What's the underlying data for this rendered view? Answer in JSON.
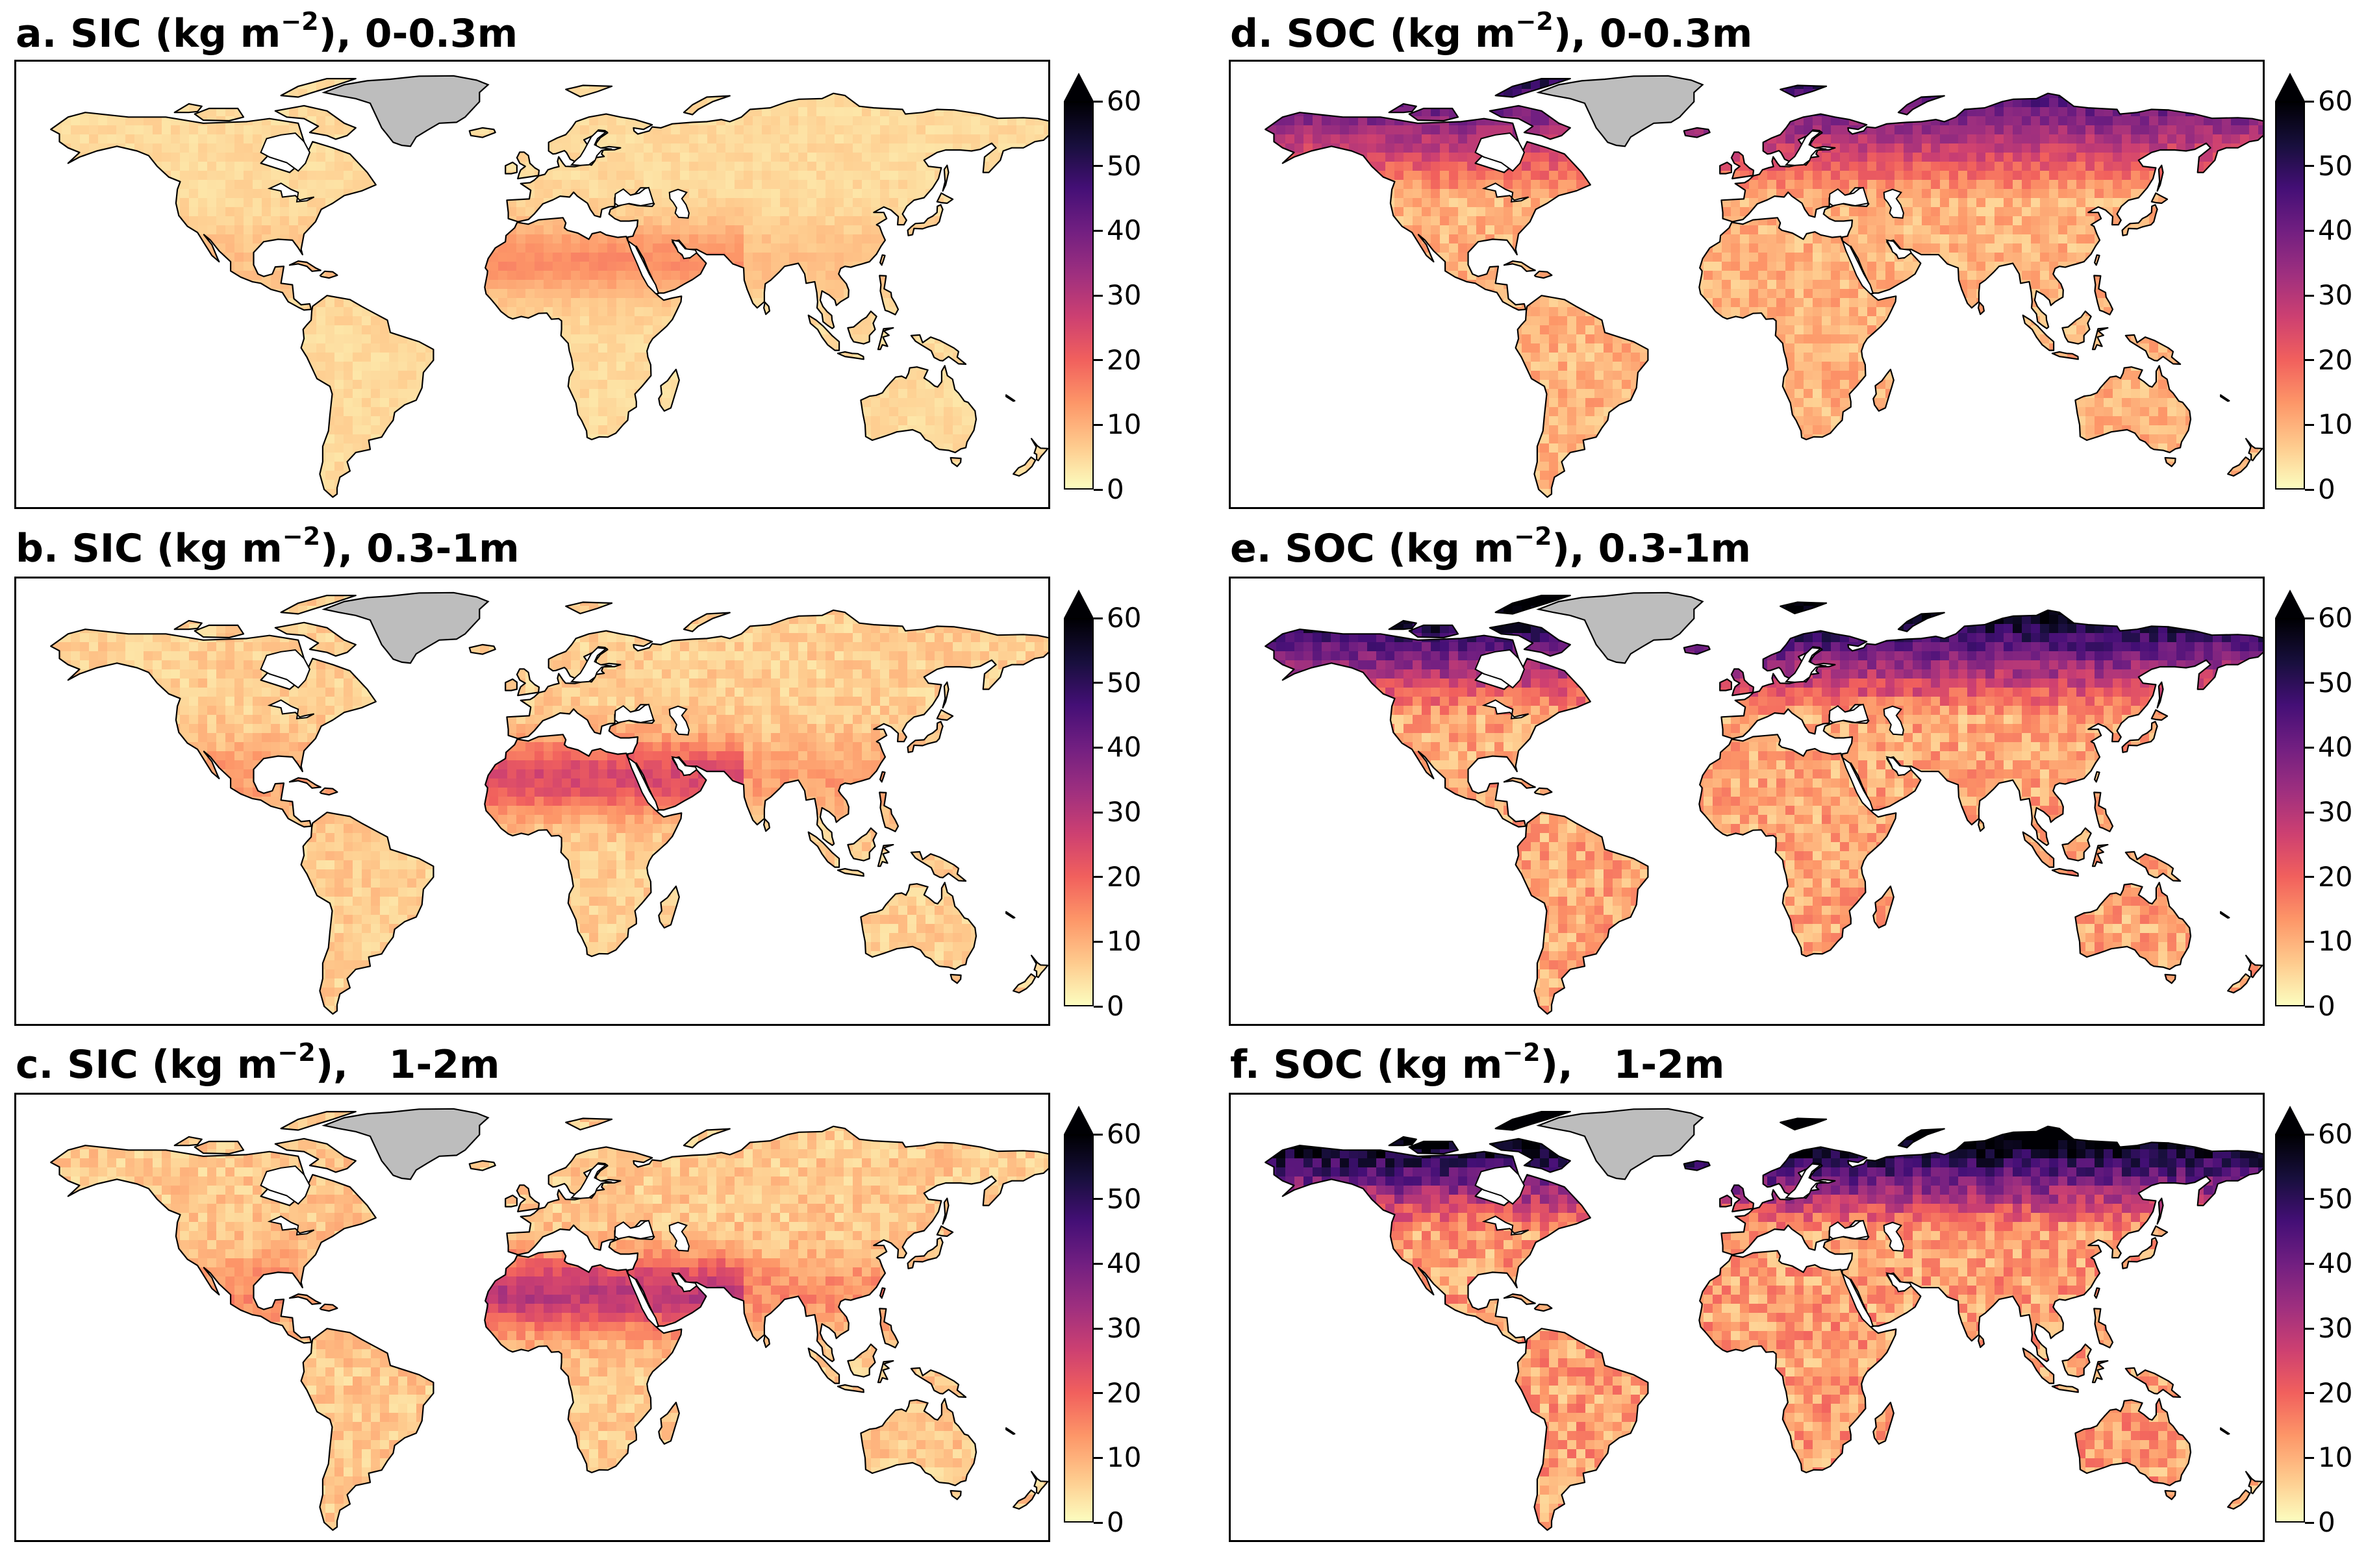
{
  "colorbar": {
    "ticks": [
      "0",
      "10",
      "20",
      "30",
      "40",
      "50",
      "60"
    ],
    "colors": [
      "#fcfdbf",
      "#feca8d",
      "#fd9668",
      "#f1605d",
      "#cd4071",
      "#9e2f7f",
      "#721f81",
      "#440f76",
      "#180f3d",
      "#000004"
    ],
    "extend": "max"
  },
  "land_colors": {
    "coastline": "#000000",
    "greenland": "#bdbdbd"
  },
  "panels": [
    {
      "id": "a",
      "letter": "a.",
      "variable": "SIC",
      "unit_pre": "(kg m",
      "unit_exp": "−2",
      "unit_post": "),",
      "depth": "0-0.3m",
      "intensity": 0.18
    },
    {
      "id": "b",
      "letter": "b.",
      "variable": "SIC",
      "unit_pre": "(kg m",
      "unit_exp": "−2",
      "unit_post": "),",
      "depth": "0.3-1m",
      "intensity": 0.34
    },
    {
      "id": "c",
      "letter": "c.",
      "variable": "SIC",
      "unit_pre": "(kg m",
      "unit_exp": "−2",
      "unit_post": "),",
      "depth": "1-2m",
      "intensity": 0.42
    },
    {
      "id": "d",
      "letter": "d.",
      "variable": "SOC",
      "unit_pre": "(kg m",
      "unit_exp": "−2",
      "unit_post": "),",
      "depth": "0-0.3m",
      "intensity": 0.45
    },
    {
      "id": "e",
      "letter": "e.",
      "variable": "SOC",
      "unit_pre": "(kg m",
      "unit_exp": "−2",
      "unit_post": "),",
      "depth": "0.3-1m",
      "intensity": 0.6
    },
    {
      "id": "f",
      "letter": "f.",
      "variable": "SOC",
      "unit_pre": "(kg m",
      "unit_exp": "−2",
      "unit_post": "),",
      "depth": "1-2m",
      "intensity": 0.7
    }
  ]
}
